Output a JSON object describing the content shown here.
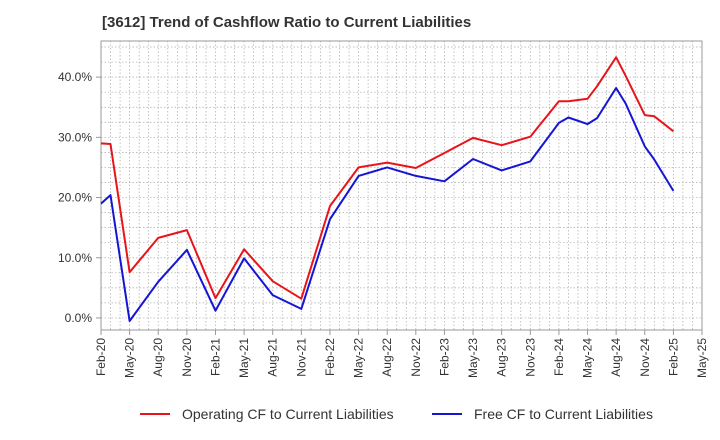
{
  "chart_data": {
    "type": "line",
    "title": "[3612]  Trend of Cashflow Ratio to Current Liabilities",
    "xlabel": "",
    "ylabel": "",
    "x_tick_labels": [
      "Feb-20",
      "May-20",
      "Aug-20",
      "Nov-20",
      "Feb-21",
      "May-21",
      "Aug-21",
      "Nov-21",
      "Feb-22",
      "May-22",
      "Aug-22",
      "Nov-22",
      "Feb-23",
      "May-23",
      "Aug-23",
      "Nov-23",
      "Feb-24",
      "May-24",
      "Aug-24",
      "Nov-24",
      "Feb-25",
      "May-25"
    ],
    "y_tick_labels": [
      "0.0%",
      "10.0%",
      "20.0%",
      "30.0%",
      "40.0%"
    ],
    "y_ticks": [
      0,
      10,
      20,
      30,
      40
    ],
    "ylim": [
      -2,
      46
    ],
    "grid": true,
    "legend_position": "bottom",
    "series": [
      {
        "name": "Operating CF to Current Liabilities",
        "color": "#e8141b",
        "x": [
          "2020-02",
          "2020-03",
          "2020-05",
          "2020-08",
          "2020-11",
          "2021-02",
          "2021-05",
          "2021-08",
          "2021-11",
          "2022-02",
          "2022-05",
          "2022-08",
          "2022-11",
          "2023-02",
          "2023-05",
          "2023-08",
          "2023-11",
          "2024-02",
          "2024-03",
          "2024-05",
          "2024-06",
          "2024-08",
          "2024-09",
          "2024-11",
          "2024-12",
          "2025-02"
        ],
        "values": [
          29.0,
          28.9,
          7.6,
          13.3,
          14.6,
          3.3,
          11.4,
          6.1,
          3.2,
          18.6,
          25.0,
          25.8,
          24.9,
          27.4,
          29.9,
          28.7,
          30.1,
          36.0,
          36.0,
          36.4,
          38.5,
          43.3,
          40.2,
          33.7,
          33.5,
          31.0
        ]
      },
      {
        "name": "Free CF to Current Liabilities",
        "color": "#1515d4",
        "x": [
          "2020-02",
          "2020-03",
          "2020-05",
          "2020-08",
          "2020-11",
          "2021-02",
          "2021-05",
          "2021-08",
          "2021-11",
          "2022-02",
          "2022-05",
          "2022-08",
          "2022-11",
          "2023-02",
          "2023-05",
          "2023-08",
          "2023-11",
          "2024-02",
          "2024-03",
          "2024-05",
          "2024-06",
          "2024-08",
          "2024-09",
          "2024-11",
          "2024-12",
          "2025-02"
        ],
        "values": [
          19.0,
          20.4,
          -0.5,
          6.0,
          11.3,
          1.2,
          9.9,
          3.8,
          1.5,
          16.4,
          23.6,
          25.0,
          23.6,
          22.7,
          26.4,
          24.5,
          26.0,
          32.4,
          33.3,
          32.2,
          33.2,
          38.2,
          35.6,
          28.5,
          26.3,
          21.1
        ]
      }
    ]
  }
}
